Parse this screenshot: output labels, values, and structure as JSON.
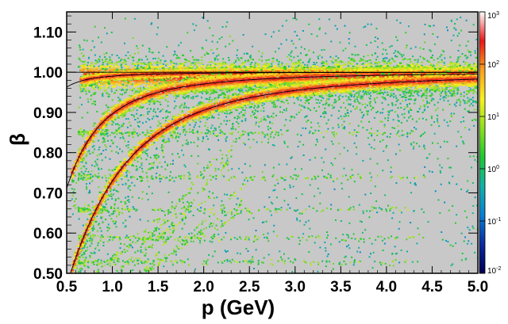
{
  "chart_data": {
    "type": "heatmap",
    "title": "",
    "xlabel": "p (GeV)",
    "ylabel": "β",
    "xlim": [
      0.5,
      5.0
    ],
    "ylim": [
      0.5,
      1.15
    ],
    "x_ticks": [
      "0.5",
      "1.0",
      "1.5",
      "2.0",
      "2.5",
      "3.0",
      "3.5",
      "4.0",
      "4.5",
      "5.0"
    ],
    "y_ticks": [
      "0.50",
      "0.60",
      "0.70",
      "0.80",
      "0.90",
      "1.00",
      "1.10"
    ],
    "grid": false,
    "background_color": "#c8c8c8",
    "colorscale": {
      "scale": "log",
      "range": [
        0.01,
        1000
      ],
      "ticks": [
        {
          "base": "10",
          "exp": "3",
          "value": 1000
        },
        {
          "base": "10",
          "exp": "2",
          "value": 100
        },
        {
          "base": "10",
          "exp": "1",
          "value": 10
        },
        {
          "base": "10",
          "exp": "0",
          "value": 1
        },
        {
          "base": "10",
          "exp": "-1",
          "value": 0.1
        },
        {
          "base": "10",
          "exp": "-2",
          "value": 0.01
        }
      ],
      "colors": [
        "#000050",
        "#0a2a9e",
        "#0a7fd0",
        "#12b0a8",
        "#1ec832",
        "#8ee020",
        "#f8f020",
        "#f8a020",
        "#e81818",
        "#ffffff"
      ]
    },
    "bands": [
      {
        "particle_mass_gev": 0.0,
        "center_beta": 0.99,
        "p_min": 0.65,
        "p_max": 5.0
      },
      {
        "particle_mass_gev": 0.14,
        "p_min": 0.65,
        "p_max": 5.0
      },
      {
        "particle_mass_gev": 0.494,
        "p_min": 0.55,
        "p_max": 5.0
      },
      {
        "particle_mass_gev": 0.938,
        "p_min": 0.55,
        "p_max": 5.0
      }
    ],
    "theory_curves": [
      {
        "particle_mass_gev": 0.000511
      },
      {
        "particle_mass_gev": 0.14
      },
      {
        "particle_mass_gev": 0.494
      },
      {
        "particle_mass_gev": 0.938
      }
    ],
    "horizontal_streaks_beta": [
      0.53,
      0.59,
      0.66,
      0.74,
      0.85
    ]
  }
}
